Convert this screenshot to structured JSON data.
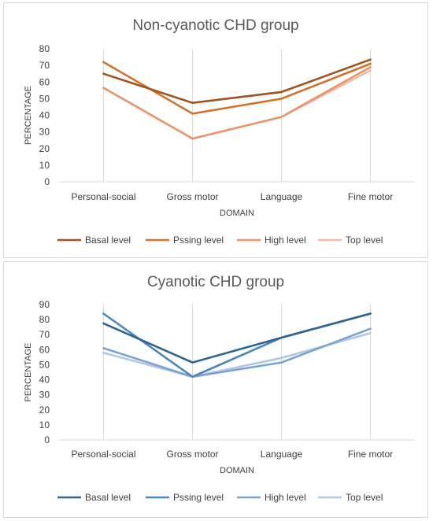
{
  "chart_data": [
    {
      "type": "line",
      "title": "Non-cyanotic CHD group",
      "xlabel": "DOMAIN",
      "ylabel": "PERCENTAGE",
      "categories": [
        "Personal-social",
        "Gross motor",
        "Language",
        "Fine motor"
      ],
      "ylim": [
        0,
        80
      ],
      "yticks": [
        0,
        10,
        20,
        30,
        40,
        50,
        60,
        70,
        80
      ],
      "grid": "vertical",
      "legend_position": "bottom",
      "series": [
        {
          "name": "Basal level",
          "color": "#a0521e",
          "values": [
            65,
            47.5,
            54,
            73.5
          ]
        },
        {
          "name": "Pssing level",
          "color": "#d2732c",
          "values": [
            72,
            41,
            50,
            71
          ]
        },
        {
          "name": "High level",
          "color": "#e8956b",
          "values": [
            56.5,
            26,
            39,
            69
          ]
        },
        {
          "name": "Top level",
          "color": "#f2b8a6",
          "values": [
            56.5,
            26,
            39,
            67
          ]
        }
      ]
    },
    {
      "type": "line",
      "title": "Cyanotic CHD group",
      "xlabel": "DOMAIN",
      "ylabel": "PERCENTAGE",
      "categories": [
        "Personal-social",
        "Gross motor",
        "Language",
        "Fine motor"
      ],
      "ylim": [
        0,
        90
      ],
      "yticks": [
        0,
        10,
        20,
        30,
        40,
        50,
        60,
        70,
        80,
        90
      ],
      "grid": "vertical",
      "legend_position": "bottom",
      "series": [
        {
          "name": "Basal level",
          "color": "#2f6491",
          "values": [
            77.5,
            51.5,
            68,
            84
          ]
        },
        {
          "name": "Pssing level",
          "color": "#4a86bf",
          "values": [
            84,
            42,
            68,
            84
          ]
        },
        {
          "name": "High level",
          "color": "#7aa3d4",
          "values": [
            61,
            42,
            51.5,
            74
          ]
        },
        {
          "name": "Top level",
          "color": "#b0c7e6",
          "values": [
            58,
            42,
            54.5,
            71
          ]
        }
      ]
    }
  ]
}
